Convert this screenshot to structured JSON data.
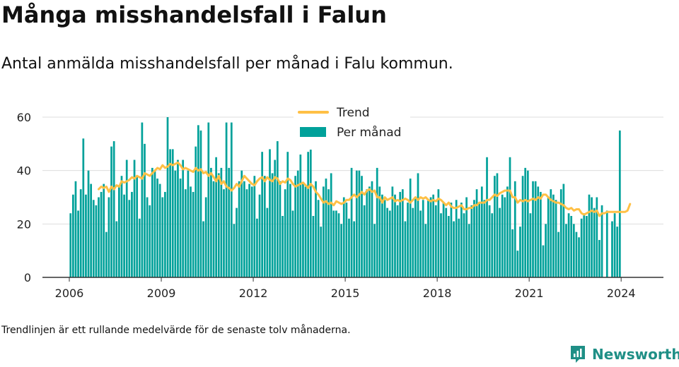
{
  "header": {
    "title": "Många misshandelsfall i Falun",
    "subtitle": "Antal anmälda misshandelsfall per månad i Falu kommun."
  },
  "footer": {
    "note": "Trendlinjen är ett rullande medelvärde för de senaste tolv månaderna.",
    "brand": "Newsworthy"
  },
  "colors": {
    "bars": "#00a19a",
    "trend": "#ffc045",
    "grid": "#dddddd",
    "axis": "#333333",
    "brand": "#1f8f86"
  },
  "chart_data": {
    "type": "bar",
    "title": "",
    "xlabel": "",
    "ylabel": "",
    "ylim": [
      0,
      60
    ],
    "yticks": [
      0,
      20,
      40,
      60
    ],
    "xticks": [
      "2006",
      "2009",
      "2012",
      "2015",
      "2018",
      "2021",
      "2024"
    ],
    "start_month": "2006-01",
    "grid": true,
    "legend": {
      "position": "top",
      "entries": [
        "Trend",
        "Per månad"
      ]
    },
    "series": [
      {
        "name": "Per månad",
        "kind": "bar",
        "values": [
          24,
          31,
          36,
          25,
          33,
          52,
          31,
          40,
          35,
          29,
          27,
          30,
          32,
          35,
          17,
          30,
          49,
          51,
          21,
          34,
          38,
          31,
          44,
          29,
          32,
          44,
          38,
          22,
          58,
          50,
          30,
          27,
          41,
          40,
          37,
          35,
          30,
          32,
          60,
          48,
          48,
          40,
          44,
          37,
          44,
          33,
          40,
          34,
          32,
          49,
          57,
          55,
          21,
          30,
          58,
          41,
          36,
          45,
          39,
          41,
          33,
          58,
          41,
          58,
          20,
          26,
          36,
          40,
          36,
          33,
          35,
          34,
          38,
          22,
          31,
          47,
          38,
          26,
          48,
          39,
          44,
          51,
          36,
          23,
          33,
          47,
          35,
          25,
          38,
          40,
          46,
          35,
          34,
          47,
          49,
          23,
          36,
          29,
          19,
          34,
          37,
          33,
          39,
          25,
          25,
          24,
          20,
          30,
          28,
          22,
          41,
          21,
          40,
          40,
          38,
          27,
          33,
          34,
          36,
          20,
          41,
          34,
          31,
          29,
          26,
          25,
          34,
          31,
          27,
          32,
          33,
          21,
          28,
          37,
          26,
          30,
          39,
          25,
          29,
          20,
          29,
          30,
          31,
          27,
          33,
          24,
          28,
          26,
          23,
          28,
          21,
          29,
          22,
          28,
          24,
          30,
          20,
          27,
          29,
          33,
          28,
          34,
          29,
          45,
          27,
          24,
          38,
          39,
          26,
          31,
          30,
          34,
          45,
          18,
          36,
          10,
          19,
          38,
          41,
          40,
          24,
          36,
          36,
          34,
          32,
          12,
          20,
          30,
          33,
          31,
          29,
          17,
          33,
          35,
          20,
          24,
          23,
          20,
          17,
          15,
          22,
          24,
          23,
          31,
          30,
          26,
          30,
          14,
          27,
          0,
          25,
          33,
          21,
          24,
          19,
          55
        ],
        "gaps": [
          211
        ]
      },
      {
        "name": "Trend",
        "kind": "line",
        "start_index": 11,
        "values": [
          33,
          34,
          33.5,
          34,
          32,
          34,
          33,
          34.5,
          34,
          36,
          35.5,
          36,
          36.5,
          37.5,
          37,
          38,
          37.5,
          37,
          39,
          38.5,
          38,
          39,
          40,
          41,
          40.5,
          42,
          41,
          41.5,
          42.5,
          42,
          42.5,
          43,
          42,
          40.5,
          41,
          40.5,
          40,
          39.5,
          41,
          40,
          40.5,
          39,
          39.5,
          38,
          39,
          37.5,
          36,
          38,
          35,
          36,
          34,
          33.5,
          32.5,
          33.5,
          35,
          34,
          36,
          38,
          37,
          36,
          35,
          34.5,
          36,
          37,
          37.5,
          36,
          37.5,
          36.5,
          36,
          37.5,
          37,
          35,
          36,
          35.5,
          37,
          36.5,
          35,
          34,
          34.5,
          35,
          35.5,
          34.5,
          33.5,
          35,
          34,
          32,
          31,
          29.5,
          28,
          28.5,
          27.5,
          28,
          27,
          28.5,
          28,
          27.5,
          28,
          29,
          29,
          30,
          31,
          30,
          31,
          32,
          31,
          32.5,
          33,
          32,
          32.5,
          30,
          30,
          28,
          30,
          29,
          29.5,
          30,
          28.5,
          29,
          28.5,
          29,
          29.5,
          29,
          28,
          29,
          30,
          29,
          30,
          29.5,
          30,
          29,
          28.5,
          29,
          28.5,
          29.5,
          29,
          28,
          27,
          28,
          26.5,
          26,
          26,
          26.5,
          27,
          25.5,
          25.5,
          26,
          26,
          27,
          27,
          28,
          28,
          28,
          29,
          29,
          30,
          31,
          30.5,
          31.5,
          32,
          32.5,
          32.5,
          32.5,
          30,
          30,
          28,
          29,
          28.5,
          29,
          28.5,
          29,
          29.5,
          29,
          30,
          29.5,
          31,
          31,
          30,
          29,
          28.5,
          28,
          28,
          27.5,
          27,
          26,
          25.5,
          26,
          25,
          25.5,
          25.5,
          24,
          23.5,
          24,
          24.5,
          25,
          24.5,
          25,
          23,
          24,
          24,
          24.5,
          24.5,
          24.5,
          24.5,
          24.5,
          24.5,
          24.5,
          24.5,
          25,
          27.5
        ]
      }
    ]
  }
}
